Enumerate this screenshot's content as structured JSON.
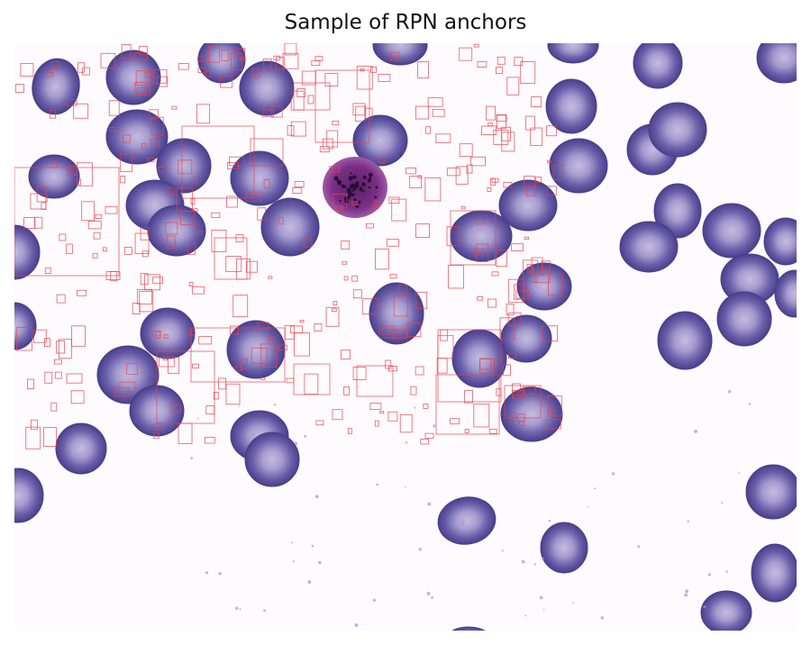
{
  "title": "Sample of RPN anchors",
  "colors": {
    "background": "#fdfbfd",
    "cell_outer": "#5a4f9c",
    "cell_inner": "#b2aad6",
    "wbc": "#7a2f85",
    "anchor": "#e8424f"
  }
}
